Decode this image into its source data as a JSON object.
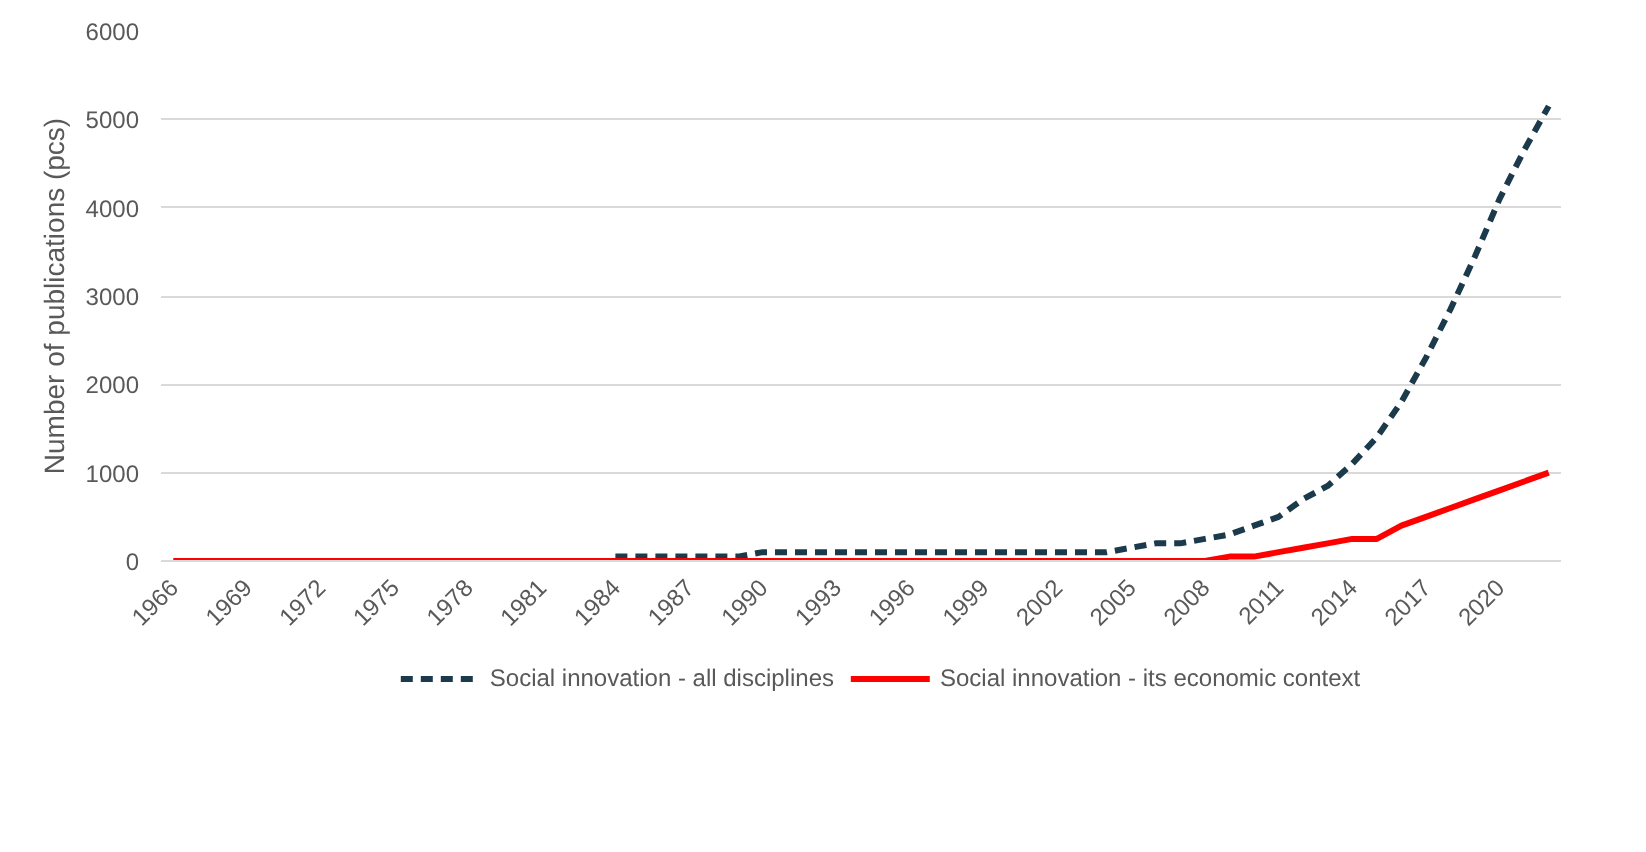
{
  "chart_data": {
    "type": "line",
    "ylabel": "Number of publications (pcs)",
    "categories": [
      "1966",
      null,
      null,
      "1969",
      null,
      null,
      "1972",
      null,
      null,
      "1975",
      null,
      null,
      "1978",
      null,
      null,
      "1981",
      null,
      null,
      "1984",
      null,
      null,
      "1987",
      null,
      null,
      "1990",
      null,
      null,
      "1993",
      null,
      null,
      "1996",
      null,
      null,
      "1999",
      null,
      null,
      "2002",
      null,
      null,
      "2005",
      null,
      null,
      "2008",
      null,
      null,
      "2011",
      null,
      null,
      "2014",
      null,
      null,
      "2017",
      null,
      null,
      "2020",
      null,
      null
    ],
    "series": [
      {
        "name": "Social innovation - all disciplines",
        "color": "#1b3a4b",
        "line_style": "dashed",
        "values": [
          null,
          null,
          null,
          null,
          null,
          null,
          null,
          null,
          null,
          null,
          null,
          null,
          null,
          null,
          null,
          null,
          null,
          null,
          50,
          50,
          50,
          50,
          50,
          50,
          100,
          100,
          100,
          100,
          100,
          100,
          100,
          100,
          100,
          100,
          100,
          100,
          100,
          100,
          100,
          150,
          200,
          200,
          250,
          300,
          400,
          500,
          700,
          850,
          1100,
          1400,
          1800,
          2300,
          2850,
          3450,
          4100,
          4650,
          5150
        ]
      },
      {
        "name": "Social innovation - its economic context",
        "color": "#ff0000",
        "line_style": "solid",
        "values": [
          0,
          0,
          0,
          0,
          0,
          0,
          0,
          0,
          0,
          0,
          0,
          0,
          0,
          0,
          0,
          0,
          0,
          0,
          0,
          0,
          0,
          0,
          0,
          0,
          0,
          0,
          0,
          0,
          0,
          0,
          0,
          0,
          0,
          0,
          0,
          0,
          0,
          0,
          0,
          0,
          0,
          0,
          0,
          50,
          50,
          100,
          150,
          200,
          250,
          250,
          400,
          500,
          600,
          700,
          800,
          900,
          1000
        ]
      }
    ],
    "ylim": [
      0,
      6000
    ],
    "yticks": [
      0,
      1000,
      2000,
      3000,
      4000,
      5000,
      6000
    ],
    "grid": "y",
    "legend": "bottom"
  }
}
